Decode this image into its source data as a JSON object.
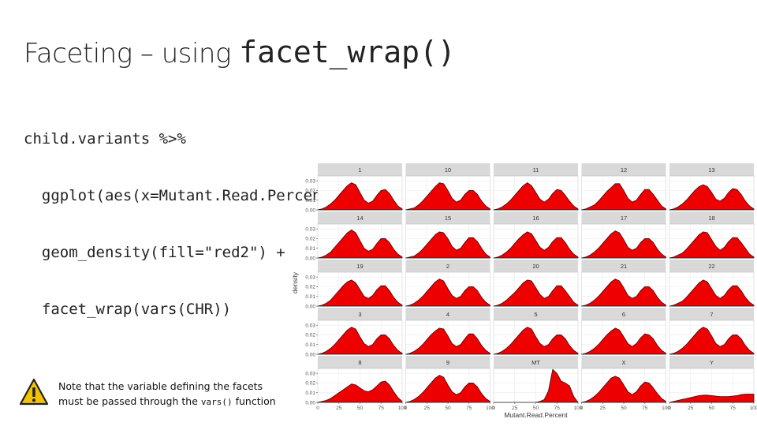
{
  "slide": {
    "title_text": "Faceting – using ",
    "title_code": "facet_wrap()",
    "code_lines": [
      "child.variants %>%",
      "  ggplot(aes(x=Mutant.Read.Percent)) +",
      "  geom_density(fill=\"red2\") +",
      "  facet_wrap(vars(CHR))"
    ],
    "note_line1": "Note that the variable defining the facets",
    "note_line2_pre": "must be passed through the ",
    "note_line2_code": "vars()",
    "note_line2_post": " function",
    "icon": "warning-icon"
  },
  "chart_data": {
    "type": "area",
    "xlabel": "Mutant.Read.Percent",
    "ylabel": "density",
    "xlim": [
      0,
      100
    ],
    "ylim": [
      0,
      0.035
    ],
    "x_ticks": [
      0,
      25,
      50,
      75,
      100
    ],
    "y_ticks": [
      0.0,
      0.01,
      0.02,
      0.03
    ],
    "y_tick_labels": [
      "0.00",
      "0.01",
      "0.02",
      "0.03"
    ],
    "fill_color": "#ee0000",
    "strip_color": "#d9d9d9",
    "grid": true,
    "facets": [
      "1",
      "10",
      "11",
      "12",
      "13",
      "14",
      "15",
      "16",
      "17",
      "18",
      "19",
      "2",
      "20",
      "21",
      "22",
      "3",
      "4",
      "5",
      "6",
      "7",
      "8",
      "9",
      "MT",
      "X",
      "Y"
    ],
    "ncol": 5,
    "x": [
      0,
      5,
      10,
      15,
      20,
      25,
      30,
      35,
      40,
      45,
      50,
      55,
      60,
      65,
      70,
      75,
      80,
      85,
      90,
      95,
      100
    ],
    "series": [
      {
        "name": "1",
        "values": [
          0,
          0.001,
          0.003,
          0.006,
          0.01,
          0.015,
          0.02,
          0.025,
          0.028,
          0.026,
          0.018,
          0.01,
          0.007,
          0.009,
          0.015,
          0.02,
          0.021,
          0.017,
          0.01,
          0.004,
          0.001
        ]
      },
      {
        "name": "10",
        "values": [
          0,
          0.001,
          0.002,
          0.005,
          0.009,
          0.014,
          0.019,
          0.024,
          0.028,
          0.027,
          0.02,
          0.012,
          0.008,
          0.01,
          0.016,
          0.02,
          0.02,
          0.016,
          0.009,
          0.004,
          0.001
        ]
      },
      {
        "name": "11",
        "values": [
          0,
          0.001,
          0.003,
          0.006,
          0.01,
          0.015,
          0.02,
          0.025,
          0.028,
          0.025,
          0.018,
          0.011,
          0.008,
          0.011,
          0.017,
          0.021,
          0.02,
          0.015,
          0.009,
          0.004,
          0.001
        ]
      },
      {
        "name": "12",
        "values": [
          0,
          0.001,
          0.003,
          0.005,
          0.009,
          0.014,
          0.019,
          0.023,
          0.027,
          0.027,
          0.02,
          0.012,
          0.008,
          0.01,
          0.016,
          0.021,
          0.021,
          0.016,
          0.01,
          0.004,
          0.001
        ]
      },
      {
        "name": "13",
        "values": [
          0,
          0.001,
          0.003,
          0.006,
          0.01,
          0.015,
          0.02,
          0.024,
          0.026,
          0.024,
          0.018,
          0.011,
          0.009,
          0.012,
          0.018,
          0.022,
          0.021,
          0.016,
          0.009,
          0.004,
          0.001
        ]
      },
      {
        "name": "14",
        "values": [
          0,
          0.001,
          0.003,
          0.006,
          0.011,
          0.016,
          0.021,
          0.026,
          0.029,
          0.026,
          0.018,
          0.01,
          0.007,
          0.009,
          0.015,
          0.02,
          0.02,
          0.016,
          0.009,
          0.004,
          0.001
        ]
      },
      {
        "name": "15",
        "values": [
          0,
          0.001,
          0.002,
          0.005,
          0.009,
          0.014,
          0.019,
          0.024,
          0.027,
          0.026,
          0.02,
          0.012,
          0.008,
          0.01,
          0.016,
          0.021,
          0.021,
          0.017,
          0.01,
          0.004,
          0.001
        ]
      },
      {
        "name": "16",
        "values": [
          0,
          0.001,
          0.003,
          0.006,
          0.01,
          0.015,
          0.02,
          0.024,
          0.027,
          0.025,
          0.018,
          0.011,
          0.008,
          0.011,
          0.017,
          0.021,
          0.021,
          0.016,
          0.009,
          0.004,
          0.001
        ]
      },
      {
        "name": "17",
        "values": [
          0,
          0.001,
          0.003,
          0.006,
          0.01,
          0.015,
          0.02,
          0.025,
          0.028,
          0.026,
          0.019,
          0.011,
          0.008,
          0.01,
          0.016,
          0.02,
          0.02,
          0.016,
          0.009,
          0.004,
          0.001
        ]
      },
      {
        "name": "18",
        "values": [
          0,
          0.001,
          0.003,
          0.005,
          0.009,
          0.014,
          0.019,
          0.024,
          0.027,
          0.026,
          0.019,
          0.012,
          0.008,
          0.011,
          0.017,
          0.021,
          0.021,
          0.016,
          0.01,
          0.004,
          0.001
        ]
      },
      {
        "name": "19",
        "values": [
          0,
          0.001,
          0.003,
          0.006,
          0.011,
          0.016,
          0.021,
          0.025,
          0.027,
          0.024,
          0.017,
          0.01,
          0.008,
          0.011,
          0.017,
          0.021,
          0.021,
          0.016,
          0.009,
          0.004,
          0.001
        ]
      },
      {
        "name": "2",
        "values": [
          0,
          0.001,
          0.003,
          0.006,
          0.01,
          0.015,
          0.02,
          0.025,
          0.028,
          0.026,
          0.018,
          0.011,
          0.008,
          0.01,
          0.016,
          0.02,
          0.02,
          0.016,
          0.009,
          0.004,
          0.001
        ]
      },
      {
        "name": "20",
        "values": [
          0,
          0.001,
          0.003,
          0.006,
          0.01,
          0.014,
          0.019,
          0.024,
          0.027,
          0.026,
          0.019,
          0.012,
          0.008,
          0.01,
          0.016,
          0.021,
          0.021,
          0.016,
          0.01,
          0.004,
          0.001
        ]
      },
      {
        "name": "21",
        "values": [
          0,
          0.001,
          0.003,
          0.006,
          0.01,
          0.015,
          0.02,
          0.025,
          0.028,
          0.026,
          0.019,
          0.011,
          0.008,
          0.01,
          0.016,
          0.02,
          0.02,
          0.016,
          0.009,
          0.004,
          0.001
        ]
      },
      {
        "name": "22",
        "values": [
          0,
          0.001,
          0.003,
          0.005,
          0.009,
          0.014,
          0.019,
          0.024,
          0.027,
          0.025,
          0.018,
          0.011,
          0.008,
          0.011,
          0.017,
          0.021,
          0.021,
          0.016,
          0.009,
          0.004,
          0.001
        ]
      },
      {
        "name": "3",
        "values": [
          0,
          0.001,
          0.003,
          0.006,
          0.01,
          0.015,
          0.02,
          0.025,
          0.028,
          0.026,
          0.018,
          0.011,
          0.008,
          0.01,
          0.016,
          0.02,
          0.02,
          0.016,
          0.009,
          0.004,
          0.001
        ]
      },
      {
        "name": "4",
        "values": [
          0,
          0.001,
          0.003,
          0.006,
          0.01,
          0.015,
          0.02,
          0.024,
          0.027,
          0.026,
          0.019,
          0.011,
          0.008,
          0.01,
          0.016,
          0.021,
          0.021,
          0.016,
          0.009,
          0.004,
          0.001
        ]
      },
      {
        "name": "5",
        "values": [
          0,
          0.001,
          0.003,
          0.006,
          0.01,
          0.015,
          0.02,
          0.025,
          0.028,
          0.026,
          0.018,
          0.011,
          0.008,
          0.01,
          0.016,
          0.02,
          0.02,
          0.016,
          0.009,
          0.004,
          0.001
        ]
      },
      {
        "name": "6",
        "values": [
          0,
          0.001,
          0.003,
          0.006,
          0.01,
          0.015,
          0.02,
          0.024,
          0.027,
          0.025,
          0.018,
          0.011,
          0.008,
          0.011,
          0.017,
          0.021,
          0.02,
          0.016,
          0.009,
          0.004,
          0.001
        ]
      },
      {
        "name": "7",
        "values": [
          0,
          0.001,
          0.003,
          0.006,
          0.01,
          0.015,
          0.02,
          0.025,
          0.028,
          0.026,
          0.019,
          0.011,
          0.008,
          0.01,
          0.016,
          0.02,
          0.02,
          0.016,
          0.009,
          0.004,
          0.001
        ]
      },
      {
        "name": "8",
        "values": [
          0,
          0.001,
          0.002,
          0.004,
          0.007,
          0.01,
          0.013,
          0.016,
          0.019,
          0.018,
          0.015,
          0.012,
          0.011,
          0.013,
          0.017,
          0.021,
          0.022,
          0.018,
          0.011,
          0.005,
          0.001
        ]
      },
      {
        "name": "9",
        "values": [
          0,
          0.001,
          0.003,
          0.006,
          0.01,
          0.015,
          0.02,
          0.025,
          0.028,
          0.026,
          0.018,
          0.011,
          0.008,
          0.01,
          0.016,
          0.02,
          0.02,
          0.016,
          0.009,
          0.004,
          0.001
        ]
      },
      {
        "name": "MT",
        "values": [
          0,
          0,
          0,
          0,
          0,
          0,
          0,
          0,
          0,
          0,
          0,
          0.001,
          0.003,
          0.012,
          0.034,
          0.03,
          0.022,
          0.02,
          0.017,
          0.006,
          0
        ]
      },
      {
        "name": "X",
        "values": [
          0,
          0.001,
          0.003,
          0.006,
          0.01,
          0.015,
          0.02,
          0.025,
          0.027,
          0.025,
          0.018,
          0.011,
          0.008,
          0.011,
          0.017,
          0.021,
          0.02,
          0.015,
          0.009,
          0.004,
          0.001
        ]
      },
      {
        "name": "Y",
        "values": [
          0,
          0.001,
          0.002,
          0.003,
          0.004,
          0.005,
          0.006,
          0.007,
          0.0075,
          0.0075,
          0.007,
          0.0065,
          0.006,
          0.006,
          0.006,
          0.0065,
          0.007,
          0.008,
          0.0085,
          0.0085,
          0.0085
        ]
      }
    ]
  }
}
